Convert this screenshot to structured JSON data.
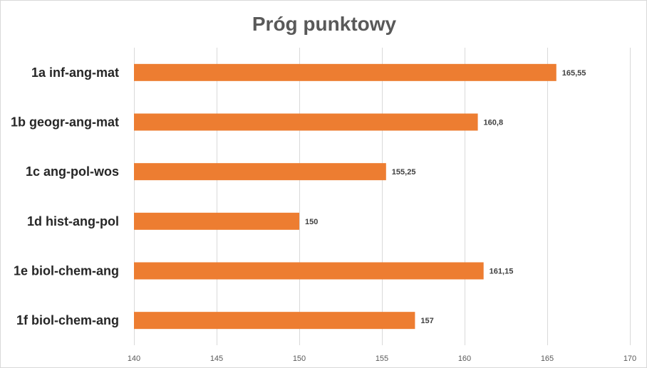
{
  "chart_data": {
    "type": "bar",
    "orientation": "horizontal",
    "title": "Próg punktowy",
    "categories": [
      "1a inf-ang-mat",
      "1b geogr-ang-mat",
      "1c ang-pol-wos",
      "1d hist-ang-pol",
      "1e biol-chem-ang",
      "1f biol-chem-ang"
    ],
    "values": [
      165.55,
      160.8,
      155.25,
      150,
      161.15,
      157
    ],
    "data_labels": [
      "165,55",
      "160,8",
      "155,25",
      "150",
      "161,15",
      "157"
    ],
    "xlim": [
      140,
      170
    ],
    "xticks": [
      140,
      145,
      150,
      155,
      160,
      165,
      170
    ],
    "xtick_labels": [
      "140",
      "145",
      "150",
      "155",
      "160",
      "165",
      "170"
    ],
    "xlabel": "",
    "ylabel": "",
    "grid": true,
    "legend": "none",
    "bar_color": "#ED7D31"
  }
}
